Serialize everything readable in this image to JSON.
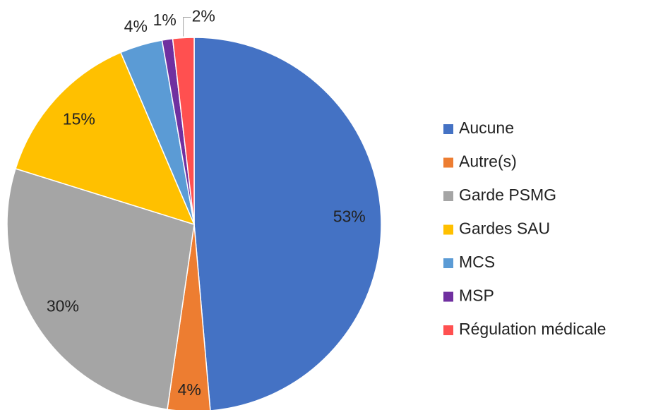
{
  "chart_data": {
    "type": "pie",
    "categories": [
      "Aucune",
      "Autre(s)",
      "Garde PSMG",
      "Gardes SAU",
      "MCS",
      "MSP",
      "Régulation médicale"
    ],
    "values": [
      53,
      4,
      30,
      15,
      4,
      1,
      2
    ],
    "value_labels": [
      "53%",
      "4%",
      "30%",
      "15%",
      "4%",
      "1%",
      "2%"
    ],
    "colors": [
      "#4472c4",
      "#ed7d31",
      "#a5a5a5",
      "#ffc000",
      "#5b9bd5",
      "#7030a0",
      "#ff5050"
    ],
    "legend": "right"
  }
}
